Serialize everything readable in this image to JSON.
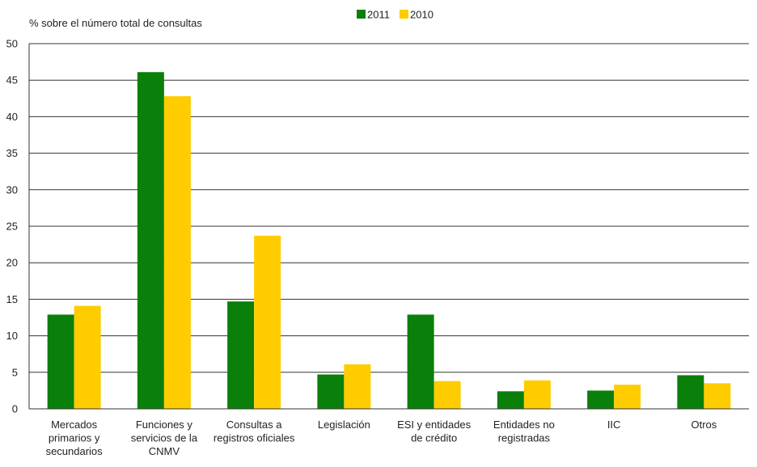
{
  "chart_data": {
    "type": "bar",
    "ylabel": "% sobre el número total de consultas",
    "ylim": [
      0,
      50
    ],
    "yticks": [
      0,
      5,
      10,
      15,
      20,
      25,
      30,
      35,
      40,
      45,
      50
    ],
    "grid": true,
    "legend_position": "top-center",
    "categories": [
      [
        "Mercados",
        "primarios y",
        "secundarios"
      ],
      [
        "Funciones y",
        "servicios de la",
        "CNMV"
      ],
      [
        "Consultas a",
        "registros oficiales"
      ],
      [
        "Legislación"
      ],
      [
        "ESI y entidades",
        "de crédito"
      ],
      [
        "Entidades no",
        "registradas"
      ],
      [
        "IIC"
      ],
      [
        "Otros"
      ]
    ],
    "series": [
      {
        "name": "2011",
        "color": "#0a7f0a",
        "values": [
          12.9,
          46.1,
          14.7,
          4.7,
          12.9,
          2.4,
          2.5,
          4.6
        ]
      },
      {
        "name": "2010",
        "color": "#ffcc00",
        "values": [
          14.1,
          42.8,
          23.7,
          6.1,
          3.8,
          3.9,
          3.3,
          3.5
        ]
      }
    ]
  }
}
